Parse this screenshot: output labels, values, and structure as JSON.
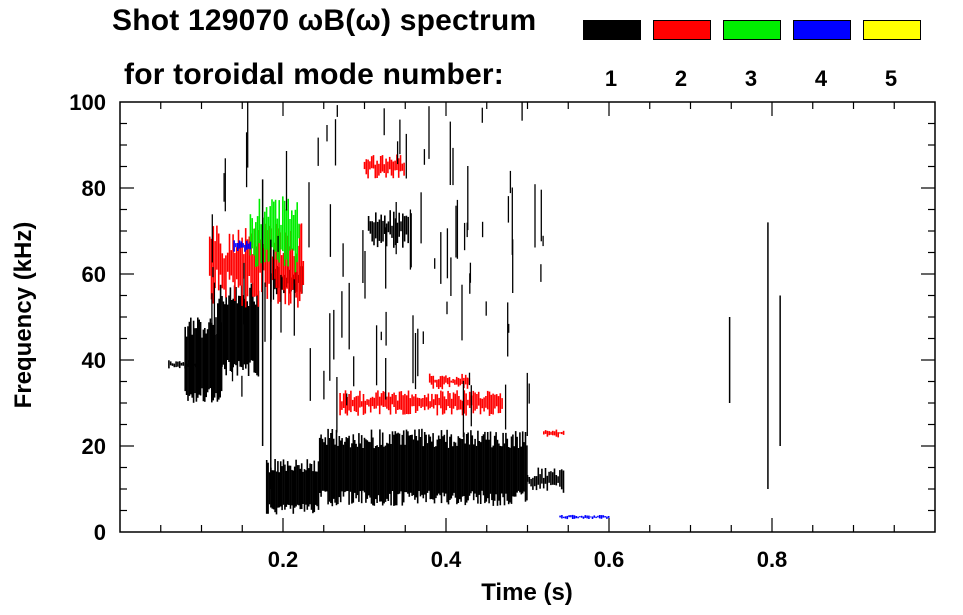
{
  "header": {
    "title_line1": "Shot 129070 ωB(ω) spectrum",
    "title_line2": "for toroidal mode number:"
  },
  "legend": [
    {
      "label": "1",
      "color": "#000000"
    },
    {
      "label": "2",
      "color": "#ff0000"
    },
    {
      "label": "3",
      "color": "#00ee00"
    },
    {
      "label": "4",
      "color": "#0000ff"
    },
    {
      "label": "5",
      "color": "#ffff00"
    }
  ],
  "chart_data": {
    "type": "heatmap",
    "title": "Shot 129070 ωB(ω) spectrum for toroidal mode number",
    "xlabel": "Time (s)",
    "ylabel": "Frequency (kHz)",
    "xlim": [
      0.0,
      1.0
    ],
    "ylim": [
      0,
      100
    ],
    "xticks": [
      0.2,
      0.4,
      0.6,
      0.8
    ],
    "xtick_labels": [
      "0.2",
      "0.4",
      "0.6",
      "0.8"
    ],
    "yticks": [
      0,
      20,
      40,
      60,
      80,
      100
    ],
    "ytick_labels": [
      "0",
      "20",
      "40",
      "60",
      "80",
      "100"
    ],
    "series": [
      {
        "name": "n=1",
        "color": "#000000",
        "regions": [
          {
            "t0": 0.245,
            "t1": 0.5,
            "f0": 6,
            "f1": 24
          },
          {
            "t0": 0.18,
            "t1": 0.245,
            "f0": 4,
            "f1": 17
          },
          {
            "t0": 0.5,
            "t1": 0.545,
            "f0": 9,
            "f1": 15
          },
          {
            "t0": 0.08,
            "t1": 0.125,
            "f0": 30,
            "f1": 50
          },
          {
            "t0": 0.12,
            "t1": 0.17,
            "f0": 36,
            "f1": 58
          },
          {
            "t0": 0.06,
            "t1": 0.095,
            "f0": 38,
            "f1": 40
          },
          {
            "t0": 0.305,
            "t1": 0.355,
            "f0": 66,
            "f1": 75
          },
          {
            "t0": 0.19,
            "t1": 0.225,
            "f0": 55,
            "f1": 62
          }
        ]
      },
      {
        "name": "n=2",
        "color": "#ff0000",
        "regions": [
          {
            "t0": 0.11,
            "t1": 0.225,
            "f0": 52,
            "f1": 72
          },
          {
            "t0": 0.27,
            "t1": 0.47,
            "f0": 27,
            "f1": 33
          },
          {
            "t0": 0.3,
            "t1": 0.35,
            "f0": 82,
            "f1": 88
          },
          {
            "t0": 0.38,
            "t1": 0.43,
            "f0": 33,
            "f1": 37
          },
          {
            "t0": 0.52,
            "t1": 0.545,
            "f0": 22,
            "f1": 24
          }
        ]
      },
      {
        "name": "n=3",
        "color": "#00ee00",
        "regions": [
          {
            "t0": 0.16,
            "t1": 0.22,
            "f0": 60,
            "f1": 79
          }
        ]
      },
      {
        "name": "n=4",
        "color": "#0000ff",
        "regions": [
          {
            "t0": 0.54,
            "t1": 0.6,
            "f0": 3,
            "f1": 4
          },
          {
            "t0": 0.14,
            "t1": 0.16,
            "f0": 65,
            "f1": 68
          }
        ]
      },
      {
        "name": "n=5",
        "color": "#ffff00",
        "regions": []
      }
    ]
  }
}
